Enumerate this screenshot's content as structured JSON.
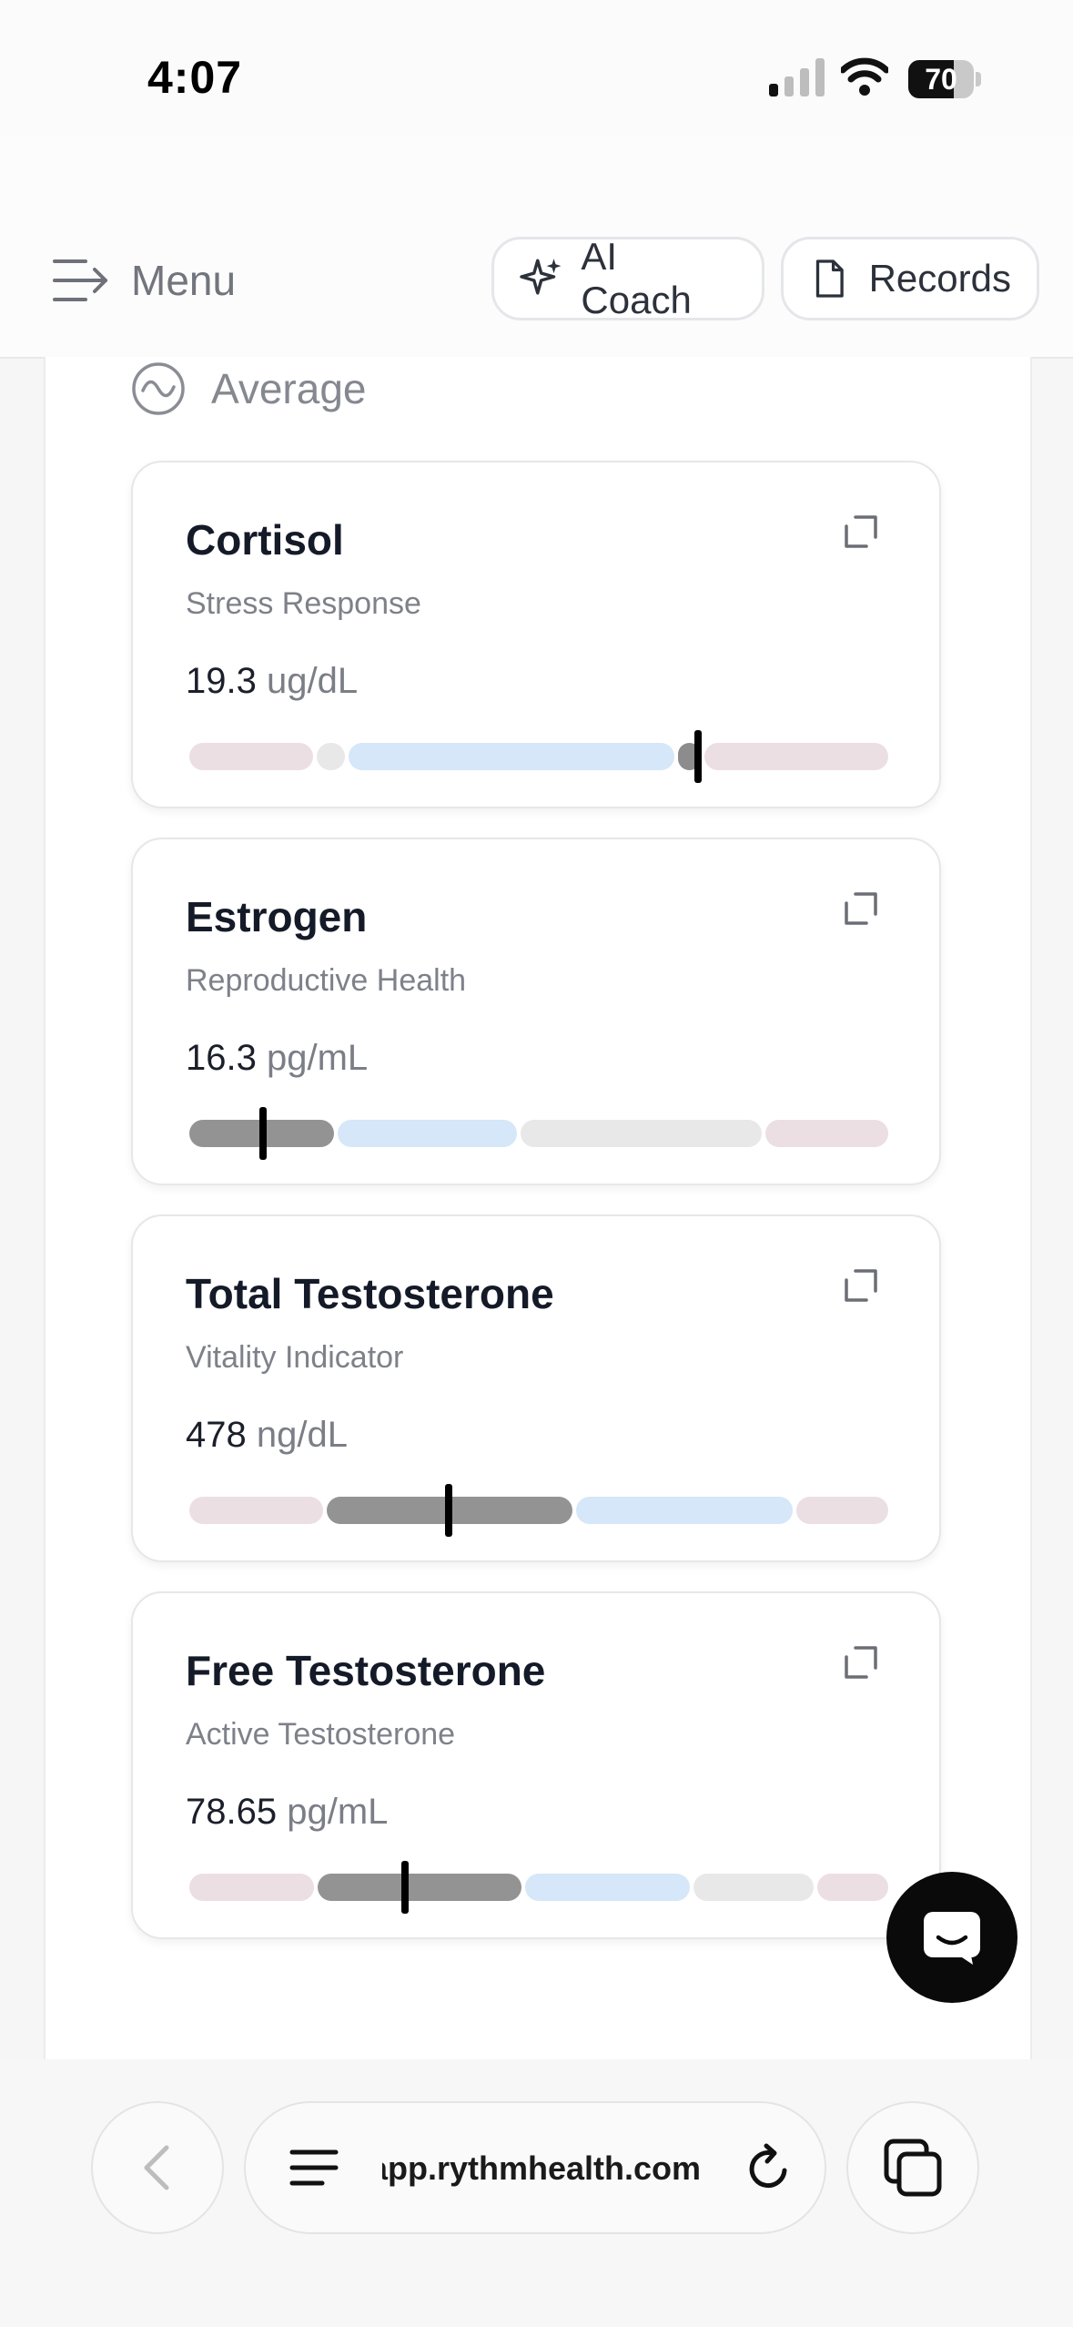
{
  "status_bar": {
    "time": "4:07",
    "battery_level": 70,
    "battery_text": "70"
  },
  "header": {
    "menu_label": "Menu",
    "ai_coach_label": "AI Coach",
    "records_label": "Records"
  },
  "section": {
    "label": "Average"
  },
  "biomarkers": [
    {
      "name": "Cortisol",
      "subtitle": "Stress Response",
      "value": "19.3",
      "unit": "ug/dL",
      "marker": 0.727,
      "segments": [
        {
          "start": 0.0,
          "end": 0.181,
          "color": "#ecdfe4"
        },
        {
          "start": 0.181,
          "end": 0.227,
          "color": "#e8e8e8"
        },
        {
          "start": 0.227,
          "end": 0.695,
          "color": "#d5e7f8"
        },
        {
          "start": 0.695,
          "end": 0.733,
          "color": "#8c8c8c"
        },
        {
          "start": 0.733,
          "end": 1.0,
          "color": "#ecdfe4"
        }
      ]
    },
    {
      "name": "Estrogen",
      "subtitle": "Reproductive Health",
      "value": "16.3",
      "unit": "pg/mL",
      "marker": 0.108,
      "segments": [
        {
          "start": 0.0,
          "end": 0.211,
          "color": "#939393"
        },
        {
          "start": 0.211,
          "end": 0.472,
          "color": "#d5e7f8"
        },
        {
          "start": 0.472,
          "end": 0.82,
          "color": "#e8e8e8"
        },
        {
          "start": 0.82,
          "end": 1.0,
          "color": "#ecdfe4"
        }
      ]
    },
    {
      "name": "Total Testosterone",
      "subtitle": "Vitality Indicator",
      "value": "478",
      "unit": "ng/dL",
      "marker": 0.372,
      "segments": [
        {
          "start": 0.0,
          "end": 0.196,
          "color": "#ecdfe4"
        },
        {
          "start": 0.196,
          "end": 0.551,
          "color": "#939393"
        },
        {
          "start": 0.551,
          "end": 0.864,
          "color": "#d5e7f8"
        },
        {
          "start": 0.864,
          "end": 1.0,
          "color": "#ecdfe4"
        }
      ]
    },
    {
      "name": "Free Testosterone",
      "subtitle": "Active Testosterone",
      "value": "78.65",
      "unit": "pg/mL",
      "marker": 0.31,
      "segments": [
        {
          "start": 0.0,
          "end": 0.183,
          "color": "#ecdfe4"
        },
        {
          "start": 0.183,
          "end": 0.478,
          "color": "#939393"
        },
        {
          "start": 0.478,
          "end": 0.718,
          "color": "#d5e7f8"
        },
        {
          "start": 0.718,
          "end": 0.894,
          "color": "#e8e8e8"
        },
        {
          "start": 0.894,
          "end": 1.0,
          "color": "#ecdfe4"
        }
      ]
    }
  ],
  "browser": {
    "url_display": "app.rythmhealth.com"
  },
  "icons": {
    "menu": "menu-lines-arrow-icon",
    "ai_coach": "sparkle-icon",
    "records": "document-icon",
    "average": "wave-circle-icon",
    "expand": "expand-icon",
    "chat": "chat-icon",
    "back": "chevron-left-icon",
    "url_menu": "hamburger-icon",
    "reload": "reload-icon",
    "tabs": "tabs-icon"
  }
}
